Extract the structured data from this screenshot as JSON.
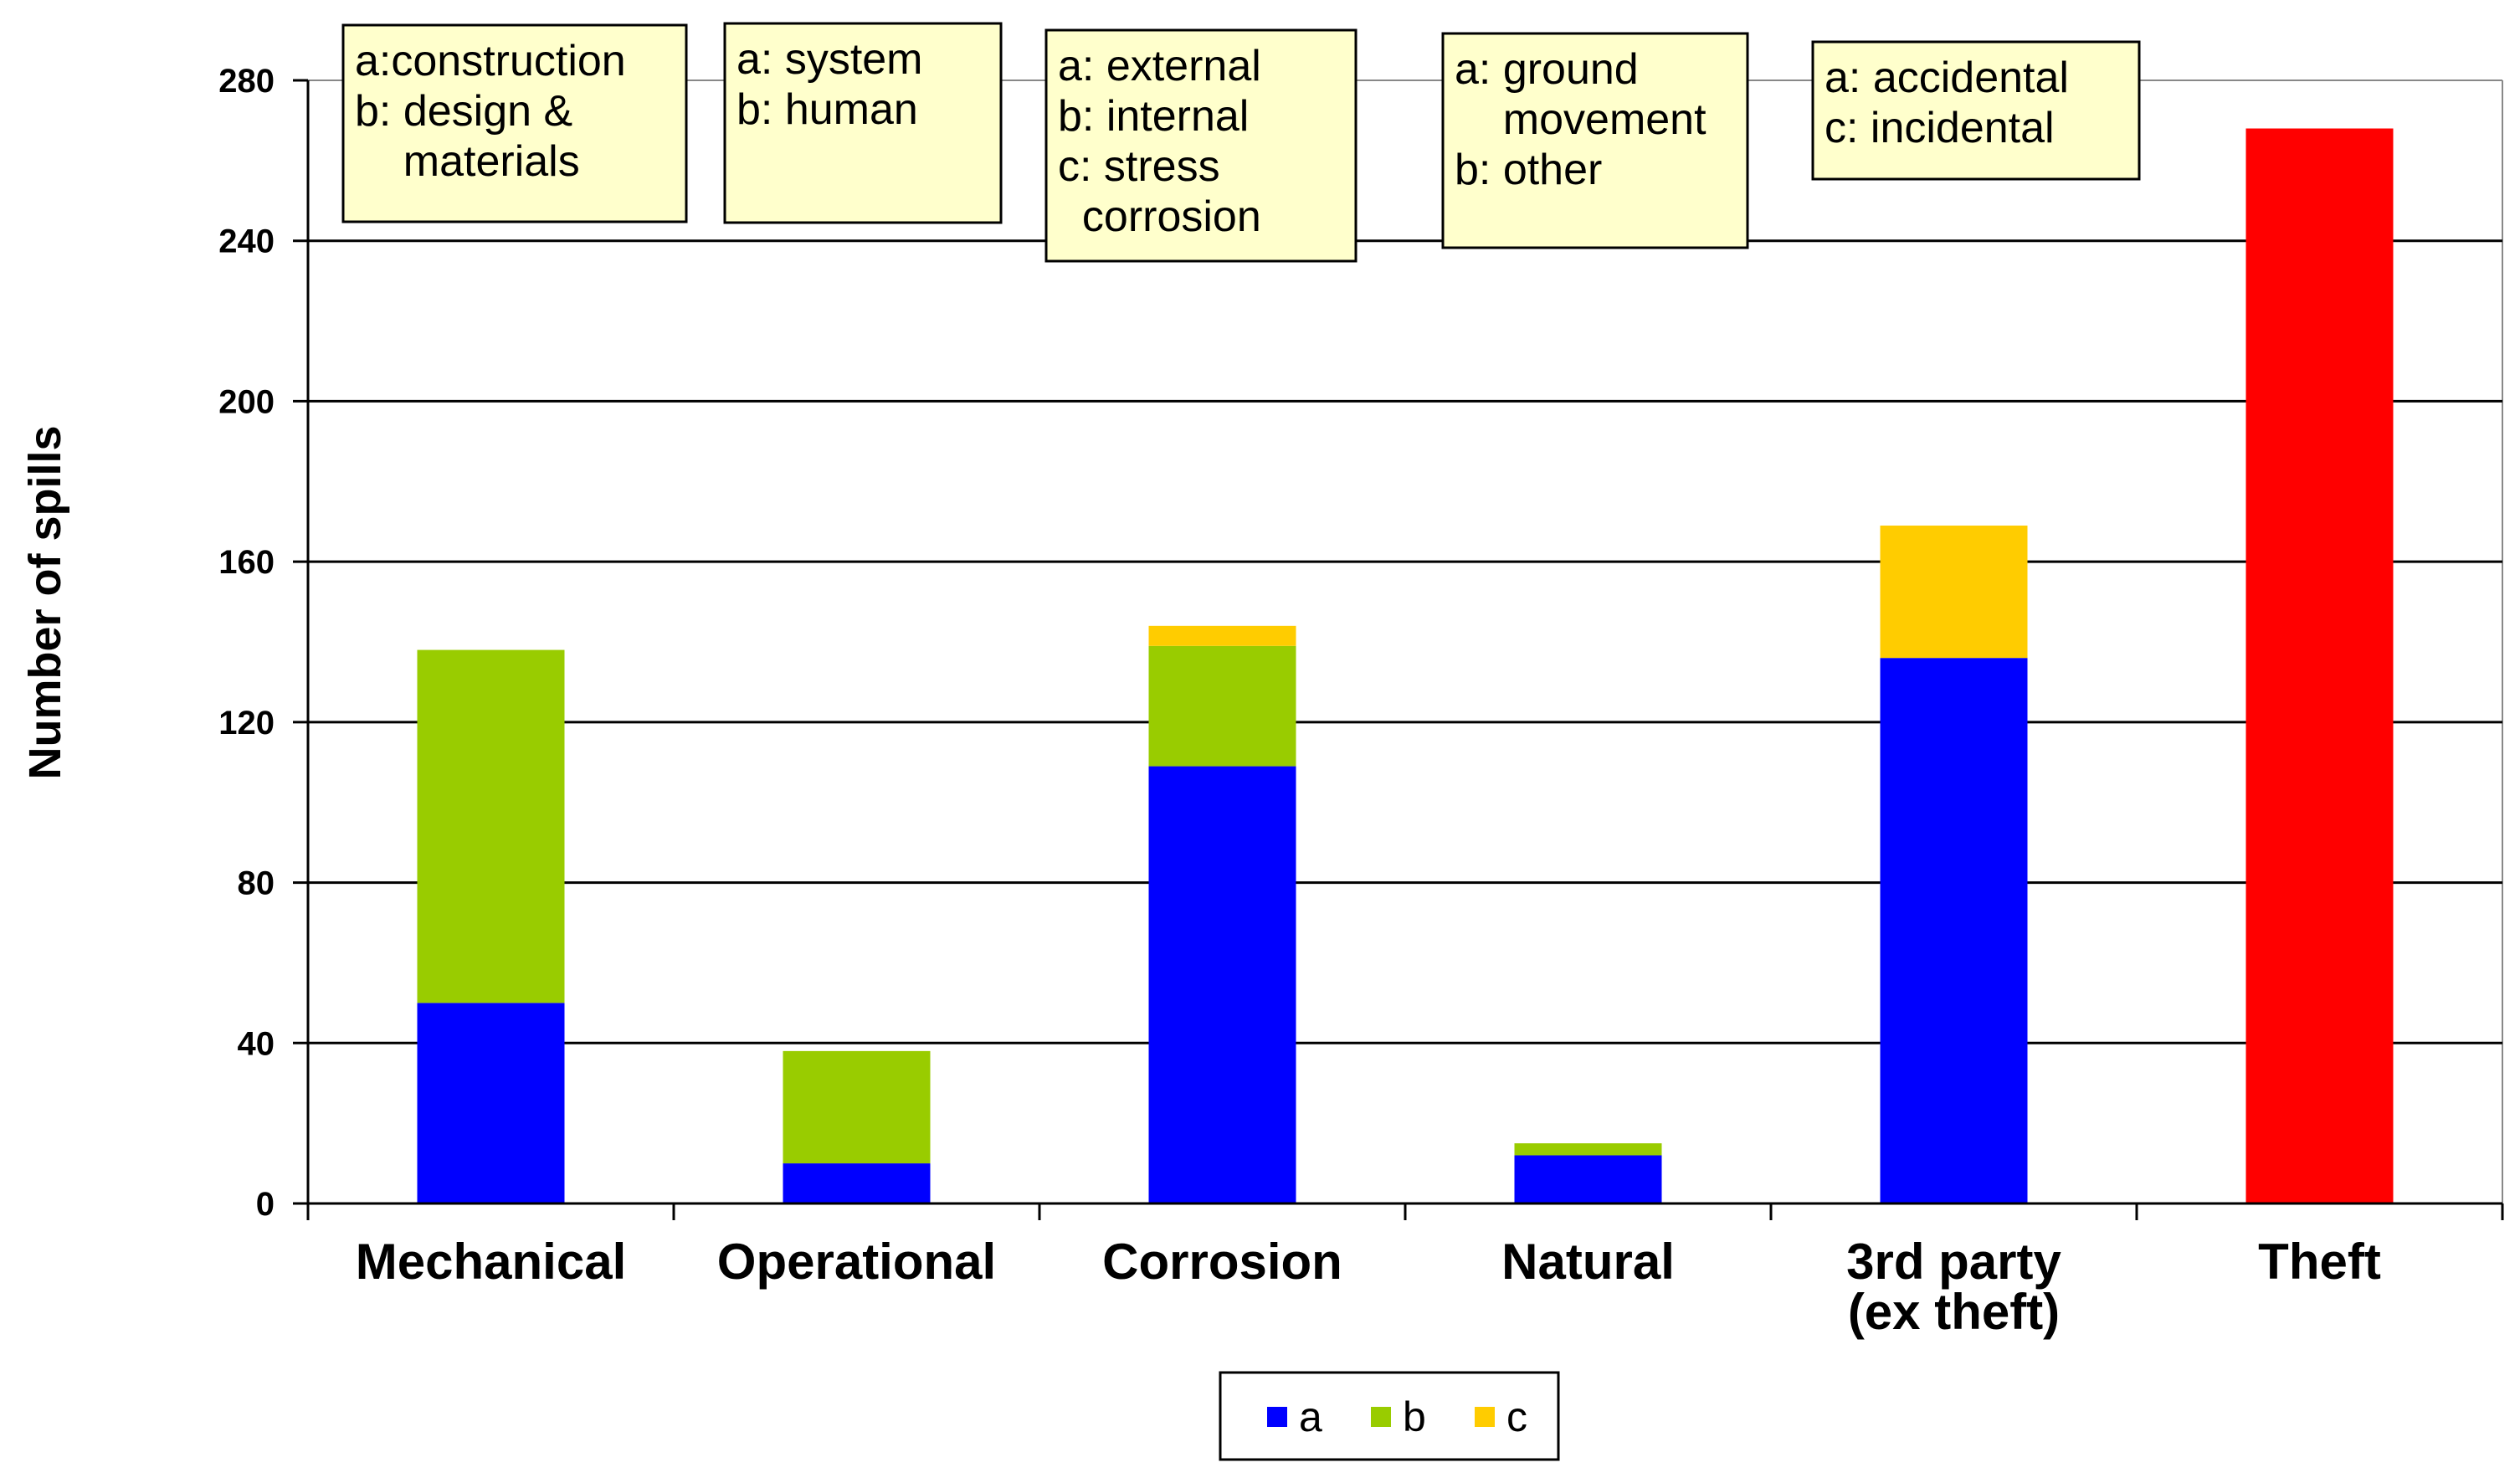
{
  "chart_data": {
    "type": "bar",
    "stacked": true,
    "ylabel": "Number of spills",
    "xlabel": "",
    "ylim": [
      0,
      280
    ],
    "yticks": [
      0,
      40,
      80,
      120,
      160,
      200,
      240,
      280
    ],
    "grid": true,
    "categories": [
      [
        "Mechanical"
      ],
      [
        "Operational"
      ],
      [
        "Corrosion"
      ],
      [
        "Natural"
      ],
      [
        "3rd party",
        "(ex theft)"
      ],
      [
        "Theft"
      ]
    ],
    "series": [
      {
        "name": "a",
        "color": "#0000ff",
        "values": [
          50,
          10,
          109,
          12,
          136,
          0
        ]
      },
      {
        "name": "b",
        "color": "#99cc00",
        "values": [
          88,
          28,
          30,
          3,
          0,
          0
        ]
      },
      {
        "name": "c",
        "color": "#ffcc00",
        "values": [
          0,
          0,
          5,
          0,
          33,
          0
        ]
      },
      {
        "name": "theft",
        "color": "#ff0000",
        "values": [
          0,
          0,
          0,
          0,
          0,
          268
        ]
      }
    ],
    "legend": [
      "a",
      "b",
      "c"
    ],
    "legend_position": "bottom-center",
    "annotations": [
      [
        "a:construction",
        "b: design &",
        "    materials"
      ],
      [
        "a: system",
        "b: human"
      ],
      [
        "a: external",
        "b: internal",
        "c: stress",
        "  corrosion"
      ],
      [
        "a: ground",
        "    movement",
        "b: other"
      ],
      [
        "a: accidental",
        "c: incidental"
      ]
    ],
    "annotation_color": "#ffffcc"
  }
}
